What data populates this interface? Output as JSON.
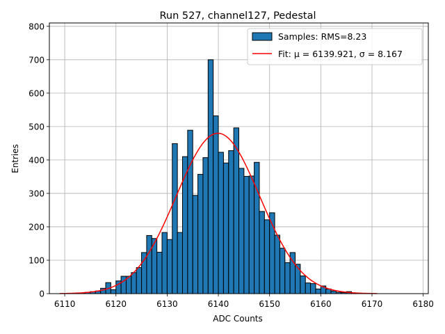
{
  "chart_data": {
    "type": "bar",
    "title": "Run 527, channel127, Pedestal",
    "xlabel": "ADC Counts",
    "ylabel": "Entries",
    "xlim": [
      6107,
      6181
    ],
    "ylim": [
      0,
      810
    ],
    "xticks": [
      6110,
      6120,
      6130,
      6140,
      6150,
      6160,
      6170,
      6180
    ],
    "yticks": [
      0,
      100,
      200,
      300,
      400,
      500,
      600,
      700,
      800
    ],
    "grid": true,
    "legend_position": "top-right",
    "histogram": {
      "name": "Samples: RMS=8.23",
      "color": "#1f77b4",
      "bin_edges_start": 6113,
      "bin_width": 1,
      "values": [
        2,
        4,
        6,
        8,
        16,
        33,
        12,
        38,
        52,
        52,
        63,
        78,
        123,
        174,
        165,
        124,
        183,
        162,
        449,
        183,
        410,
        489,
        294,
        357,
        407,
        700,
        532,
        423,
        391,
        428,
        496,
        375,
        351,
        352,
        393,
        246,
        221,
        242,
        175,
        136,
        93,
        123,
        88,
        53,
        32,
        30,
        14,
        23,
        14,
        8,
        4,
        3,
        6,
        2
      ]
    },
    "fit": {
      "name": "Fit: μ = 6139.921, σ = 8.167",
      "color": "#ff0000",
      "mu": 6139.921,
      "sigma": 8.167,
      "amplitude": 480,
      "range": [
        6109,
        6171
      ]
    }
  }
}
